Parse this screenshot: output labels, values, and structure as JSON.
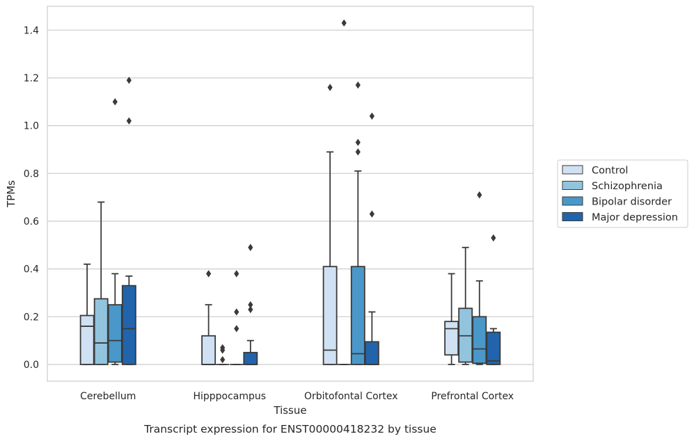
{
  "caption": "Transcript expression for ENST00000418232 by tissue",
  "colors": {
    "grid": "#cccccc",
    "frame": "#cccccc",
    "box_edge": "#3a3a3a",
    "Control": "#cfe1f2",
    "Schizophrenia": "#93c4de",
    "Bipolar disorder": "#4a98c9",
    "Major depression": "#2164ab"
  },
  "chart_data": {
    "type": "box",
    "xlabel": "Tissue",
    "ylabel": "TPMs",
    "ylim": [
      -0.07,
      1.5
    ],
    "yticks": [
      0.0,
      0.2,
      0.4,
      0.6,
      0.8,
      1.0,
      1.2,
      1.4
    ],
    "ytick_labels": [
      "0.0",
      "0.2",
      "0.4",
      "0.6",
      "0.8",
      "1.0",
      "1.2",
      "1.4"
    ],
    "grid": true,
    "legend_position": "right",
    "categories": [
      "Cerebellum",
      "Hipppocampus",
      "Orbitofontal Cortex",
      "Prefrontal Cortex"
    ],
    "series": [
      {
        "name": "Control",
        "boxes": [
          {
            "whislo": 0.0,
            "q1": 0.0,
            "med": 0.16,
            "q3": 0.205,
            "whishi": 0.42,
            "fliers": []
          },
          {
            "whislo": 0.0,
            "q1": 0.0,
            "med": 0.0,
            "q3": 0.12,
            "whishi": 0.25,
            "fliers": [
              0.38
            ]
          },
          {
            "whislo": 0.0,
            "q1": 0.0,
            "med": 0.06,
            "q3": 0.41,
            "whishi": 0.89,
            "fliers": [
              1.16
            ]
          },
          {
            "whislo": 0.0,
            "q1": 0.04,
            "med": 0.15,
            "q3": 0.18,
            "whishi": 0.38,
            "fliers": []
          }
        ]
      },
      {
        "name": "Schizophrenia",
        "boxes": [
          {
            "whislo": 0.0,
            "q1": 0.0,
            "med": 0.09,
            "q3": 0.275,
            "whishi": 0.68,
            "fliers": []
          },
          {
            "whislo": 0.0,
            "q1": 0.0,
            "med": 0.0,
            "q3": 0.0,
            "whishi": 0.0,
            "fliers": [
              0.07,
              0.06,
              0.02
            ]
          },
          {
            "whislo": 0.0,
            "q1": 0.0,
            "med": 0.0,
            "q3": 0.0,
            "whishi": 0.0,
            "fliers": [
              1.43
            ]
          },
          {
            "whislo": 0.0,
            "q1": 0.01,
            "med": 0.12,
            "q3": 0.235,
            "whishi": 0.49,
            "fliers": []
          }
        ]
      },
      {
        "name": "Bipolar disorder",
        "boxes": [
          {
            "whislo": 0.0,
            "q1": 0.01,
            "med": 0.1,
            "q3": 0.25,
            "whishi": 0.38,
            "fliers": [
              1.1
            ]
          },
          {
            "whislo": 0.0,
            "q1": 0.0,
            "med": 0.0,
            "q3": 0.0,
            "whishi": 0.0,
            "fliers": [
              0.38,
              0.22,
              0.15
            ]
          },
          {
            "whislo": 0.0,
            "q1": 0.0,
            "med": 0.045,
            "q3": 0.41,
            "whishi": 0.81,
            "fliers": [
              1.17,
              0.93,
              0.89
            ]
          },
          {
            "whislo": 0.0,
            "q1": 0.005,
            "med": 0.065,
            "q3": 0.2,
            "whishi": 0.35,
            "fliers": [
              0.71
            ]
          }
        ]
      },
      {
        "name": "Major depression",
        "boxes": [
          {
            "whislo": 0.0,
            "q1": 0.0,
            "med": 0.15,
            "q3": 0.33,
            "whishi": 0.37,
            "fliers": [
              1.19,
              1.02
            ]
          },
          {
            "whislo": 0.0,
            "q1": 0.0,
            "med": 0.0,
            "q3": 0.05,
            "whishi": 0.1,
            "fliers": [
              0.49,
              0.25,
              0.23
            ]
          },
          {
            "whislo": 0.0,
            "q1": 0.0,
            "med": 0.0,
            "q3": 0.095,
            "whishi": 0.22,
            "fliers": [
              1.04,
              0.63
            ]
          },
          {
            "whislo": 0.0,
            "q1": 0.0,
            "med": 0.015,
            "q3": 0.135,
            "whishi": 0.15,
            "fliers": [
              0.53
            ]
          }
        ]
      }
    ]
  }
}
